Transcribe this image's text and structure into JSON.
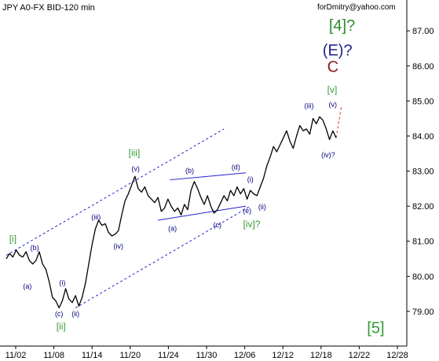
{
  "chart_data": {
    "type": "line",
    "title": "JPY A0-FX BID-120 min",
    "watermark": "forDmitry@yahoo.com",
    "x_ticks": [
      "11/02",
      "11/08",
      "11/14",
      "11/20",
      "11/24",
      "11/30",
      "12/06",
      "12/12",
      "12/18",
      "12/22",
      "12/28"
    ],
    "y_ticks": [
      "79.00",
      "80.00",
      "81.00",
      "82.00",
      "83.00",
      "84.00",
      "85.00",
      "86.00",
      "87.00"
    ],
    "y_tick_values": [
      79,
      80,
      81,
      82,
      83,
      84,
      85,
      86,
      87
    ],
    "ylim": [
      78.1,
      87.7
    ],
    "x_domain": [
      0,
      60
    ],
    "grid": false,
    "series": [
      {
        "color": "#000000",
        "points": [
          [
            0.0,
            80.5
          ],
          [
            0.5,
            80.65
          ],
          [
            1.0,
            80.55
          ],
          [
            1.5,
            80.75
          ],
          [
            2.0,
            80.6
          ],
          [
            2.5,
            80.55
          ],
          [
            3.0,
            80.7
          ],
          [
            3.5,
            80.45
          ],
          [
            4.0,
            80.35
          ],
          [
            4.5,
            80.45
          ],
          [
            5.0,
            80.7
          ],
          [
            5.5,
            80.35
          ],
          [
            6.0,
            80.2
          ],
          [
            6.5,
            79.85
          ],
          [
            7.0,
            79.4
          ],
          [
            7.5,
            79.3
          ],
          [
            8.0,
            79.1
          ],
          [
            8.5,
            79.3
          ],
          [
            9.0,
            79.65
          ],
          [
            9.5,
            79.35
          ],
          [
            10.0,
            79.25
          ],
          [
            10.5,
            79.45
          ],
          [
            11.0,
            79.15
          ],
          [
            11.5,
            79.4
          ],
          [
            12.0,
            79.8
          ],
          [
            12.5,
            80.35
          ],
          [
            13.0,
            80.9
          ],
          [
            13.5,
            81.35
          ],
          [
            14.0,
            81.6
          ],
          [
            14.5,
            81.45
          ],
          [
            15.0,
            81.5
          ],
          [
            15.5,
            81.25
          ],
          [
            16.0,
            81.15
          ],
          [
            16.5,
            81.2
          ],
          [
            17.0,
            81.3
          ],
          [
            17.5,
            81.75
          ],
          [
            18.0,
            82.15
          ],
          [
            18.5,
            82.35
          ],
          [
            19.0,
            82.6
          ],
          [
            19.5,
            82.85
          ],
          [
            20.0,
            82.5
          ],
          [
            20.5,
            82.4
          ],
          [
            21.0,
            82.55
          ],
          [
            21.5,
            82.3
          ],
          [
            22.0,
            82.2
          ],
          [
            22.5,
            82.1
          ],
          [
            23.0,
            82.25
          ],
          [
            23.5,
            81.85
          ],
          [
            24.0,
            81.95
          ],
          [
            24.5,
            82.2
          ],
          [
            25.0,
            82.0
          ],
          [
            25.5,
            81.85
          ],
          [
            26.0,
            81.95
          ],
          [
            26.5,
            81.75
          ],
          [
            27.0,
            82.05
          ],
          [
            27.5,
            81.9
          ],
          [
            28.0,
            82.45
          ],
          [
            28.5,
            82.7
          ],
          [
            29.0,
            82.5
          ],
          [
            29.5,
            82.25
          ],
          [
            30.0,
            82.05
          ],
          [
            30.5,
            82.3
          ],
          [
            31.0,
            82.0
          ],
          [
            31.5,
            81.8
          ],
          [
            32.0,
            81.9
          ],
          [
            32.5,
            82.1
          ],
          [
            33.0,
            82.3
          ],
          [
            33.5,
            82.15
          ],
          [
            34.0,
            82.45
          ],
          [
            34.5,
            82.3
          ],
          [
            35.0,
            82.55
          ],
          [
            35.5,
            82.35
          ],
          [
            36.0,
            82.5
          ],
          [
            36.5,
            82.2
          ],
          [
            37.0,
            82.45
          ],
          [
            37.5,
            82.35
          ],
          [
            38.0,
            82.3
          ],
          [
            38.5,
            82.55
          ],
          [
            39.0,
            82.8
          ],
          [
            39.5,
            83.15
          ],
          [
            40.0,
            83.4
          ],
          [
            40.5,
            83.7
          ],
          [
            41.0,
            83.55
          ],
          [
            41.5,
            83.75
          ],
          [
            42.0,
            83.95
          ],
          [
            42.5,
            84.15
          ],
          [
            43.0,
            83.85
          ],
          [
            43.5,
            83.65
          ],
          [
            44.0,
            84.0
          ],
          [
            44.5,
            84.3
          ],
          [
            45.0,
            84.15
          ],
          [
            45.5,
            84.2
          ],
          [
            46.0,
            84.05
          ],
          [
            46.5,
            84.5
          ],
          [
            47.0,
            84.35
          ],
          [
            47.5,
            84.55
          ],
          [
            48.0,
            84.45
          ],
          [
            48.5,
            84.2
          ],
          [
            49.0,
            83.9
          ],
          [
            49.5,
            84.15
          ],
          [
            50.0,
            83.95
          ]
        ]
      }
    ],
    "wave_labels": [
      {
        "text": "[i]",
        "x": 1.0,
        "y": 81.05,
        "color": "#339933",
        "kind": "green"
      },
      {
        "text": "(b)",
        "x": 4.3,
        "y": 80.8,
        "color": "#000080",
        "kind": "blue"
      },
      {
        "text": "(a)",
        "x": 3.2,
        "y": 79.7,
        "color": "#000080",
        "kind": "blue"
      },
      {
        "text": "(i)",
        "x": 8.5,
        "y": 79.8,
        "color": "#000080",
        "kind": "blue"
      },
      {
        "text": "(c)",
        "x": 8.0,
        "y": 78.92,
        "color": "#000080",
        "kind": "blue"
      },
      {
        "text": "(ii)",
        "x": 10.5,
        "y": 78.92,
        "color": "#000080",
        "kind": "blue"
      },
      {
        "text": "[ii]",
        "x": 8.3,
        "y": 78.55,
        "color": "#339933",
        "kind": "green"
      },
      {
        "text": "(iii)",
        "x": 13.6,
        "y": 81.67,
        "color": "#000080",
        "kind": "blue"
      },
      {
        "text": "(iv)",
        "x": 17.0,
        "y": 80.85,
        "color": "#000080",
        "kind": "blue"
      },
      {
        "text": "[iii]",
        "x": 19.4,
        "y": 83.5,
        "color": "#339933",
        "kind": "green"
      },
      {
        "text": "(v)",
        "x": 19.6,
        "y": 83.05,
        "color": "#000080",
        "kind": "blue"
      },
      {
        "text": "(b)",
        "x": 27.8,
        "y": 83.0,
        "color": "#000080",
        "kind": "blue"
      },
      {
        "text": "(a)",
        "x": 25.2,
        "y": 81.35,
        "color": "#000080",
        "kind": "blue"
      },
      {
        "text": "(c)",
        "x": 32.0,
        "y": 81.45,
        "color": "#000080",
        "kind": "blue"
      },
      {
        "text": "(d)",
        "x": 34.8,
        "y": 83.1,
        "color": "#000080",
        "kind": "blue"
      },
      {
        "text": "(i)",
        "x": 37.0,
        "y": 82.75,
        "color": "#000080",
        "kind": "blue"
      },
      {
        "text": "(e)",
        "x": 36.5,
        "y": 81.85,
        "color": "#000080",
        "kind": "blue"
      },
      {
        "text": "(ii)",
        "x": 38.8,
        "y": 81.97,
        "color": "#000080",
        "kind": "blue"
      },
      {
        "text": "[iv]?",
        "x": 37.2,
        "y": 81.47,
        "color": "#339933",
        "kind": "green"
      },
      {
        "text": "(iii)",
        "x": 45.9,
        "y": 84.85,
        "color": "#000080",
        "kind": "blue"
      },
      {
        "text": "(iv)?",
        "x": 48.8,
        "y": 83.45,
        "color": "#000080",
        "kind": "blue"
      },
      {
        "text": "[v]",
        "x": 49.4,
        "y": 85.3,
        "color": "#339933",
        "kind": "green"
      },
      {
        "text": "(v)",
        "x": 49.5,
        "y": 84.88,
        "color": "#000080",
        "kind": "blue"
      },
      {
        "text": "C",
        "x": 49.5,
        "y": 85.95,
        "color": "#8b1a1a",
        "kind": "big-red"
      },
      {
        "text": "(E)?",
        "x": 50.2,
        "y": 86.42,
        "color": "#1f1f8c",
        "kind": "big-navy"
      },
      {
        "text": "[4]?",
        "x": 50.9,
        "y": 87.12,
        "color": "#2e8b2e",
        "kind": "big-green"
      },
      {
        "text": "[5]",
        "x": 56.0,
        "y": 78.5,
        "color": "#339933",
        "kind": "big-green"
      }
    ],
    "channel_lines": [
      {
        "from": [
          0.0,
          80.6
        ],
        "to": [
          33.0,
          84.2
        ],
        "color": "#2222cc",
        "dash": true
      },
      {
        "from": [
          10.5,
          79.1
        ],
        "to": [
          37.0,
          82.0
        ],
        "color": "#2222cc",
        "dash": true
      },
      {
        "from": [
          24.8,
          82.75
        ],
        "to": [
          36.3,
          82.95
        ],
        "color": "#2222cc",
        "dash": false
      },
      {
        "from": [
          23.0,
          81.6
        ],
        "to": [
          36.3,
          82.0
        ],
        "color": "#2222cc",
        "dash": false
      },
      {
        "from": [
          50.0,
          83.95
        ],
        "to": [
          50.8,
          84.85
        ],
        "color": "#dd2222",
        "dash": true
      }
    ]
  }
}
